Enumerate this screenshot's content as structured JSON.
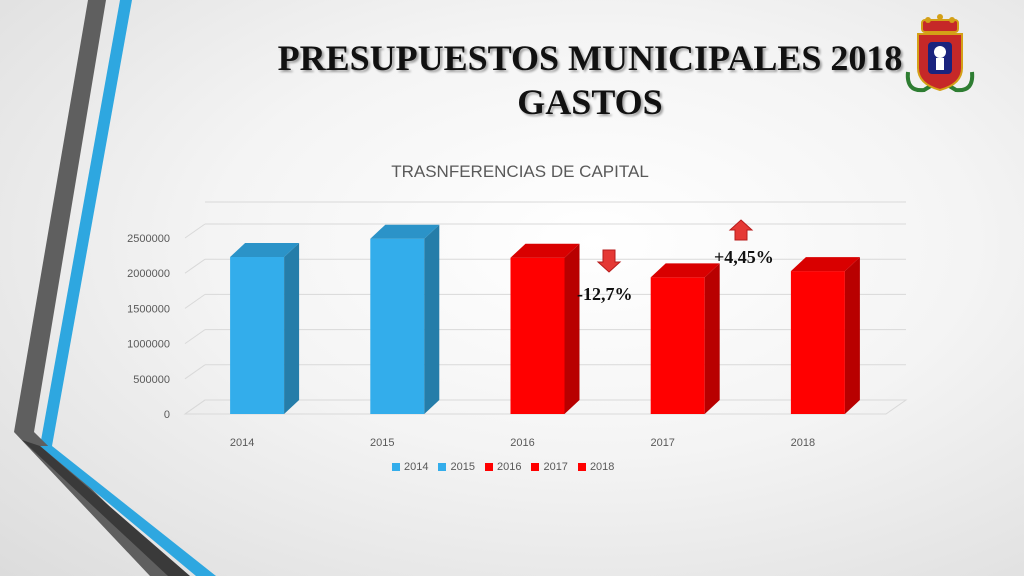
{
  "slide": {
    "title_line1": "PRESUPUESTOS MUNICIPALES 2018",
    "title_line2": "GASTOS"
  },
  "chart_data": {
    "type": "bar",
    "title": "TRASNFERENCIAS DE CAPITAL",
    "categories": [
      "2014",
      "2015",
      "2016",
      "2017",
      "2018"
    ],
    "values": [
      2230000,
      2490000,
      2220000,
      1940000,
      2030000
    ],
    "colors": [
      "#33adeb",
      "#33adeb",
      "#ff0000",
      "#ff0000",
      "#ff0000"
    ],
    "ylim": [
      0,
      2500000
    ],
    "yticks": [
      "0",
      "500000",
      "1000000",
      "1500000",
      "2000000",
      "2500000"
    ],
    "grid": true,
    "legend": {
      "position": "bottom",
      "entries": [
        {
          "label": "2014",
          "color": "#33adeb"
        },
        {
          "label": "2015",
          "color": "#33adeb"
        },
        {
          "label": "2016",
          "color": "#ff0000"
        },
        {
          "label": "2017",
          "color": "#ff0000"
        },
        {
          "label": "2018",
          "color": "#ff0000"
        }
      ]
    },
    "annotations": {
      "decrease": "-12,7%",
      "increase": "+4,45%"
    }
  }
}
